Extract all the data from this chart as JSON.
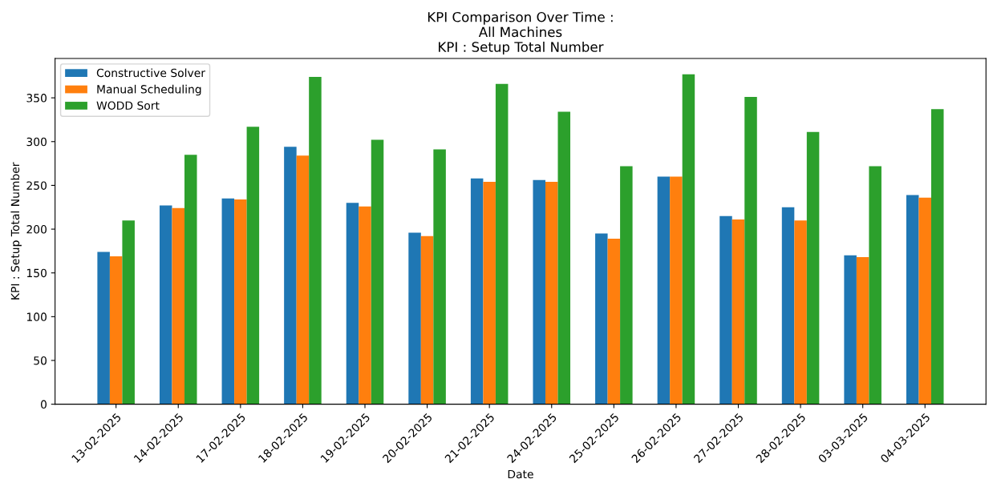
{
  "chart_data": {
    "type": "bar",
    "title": "KPI Comparison Over Time :\nAll Machines\nKPI : Setup Total Number",
    "xlabel": "Date",
    "ylabel": "KPI : Setup Total Number",
    "categories": [
      "13-02-2025",
      "14-02-2025",
      "17-02-2025",
      "18-02-2025",
      "19-02-2025",
      "20-02-2025",
      "21-02-2025",
      "24-02-2025",
      "25-02-2025",
      "26-02-2025",
      "27-02-2025",
      "28-02-2025",
      "03-03-2025",
      "04-03-2025"
    ],
    "series": [
      {
        "name": "Constructive Solver",
        "color": "#1f77b4",
        "values": [
          174,
          227,
          235,
          294,
          230,
          196,
          258,
          256,
          195,
          260,
          215,
          225,
          170,
          239
        ]
      },
      {
        "name": "Manual Scheduling",
        "color": "#ff7f0e",
        "values": [
          169,
          224,
          234,
          284,
          226,
          192,
          254,
          254,
          189,
          260,
          211,
          210,
          168,
          236
        ]
      },
      {
        "name": "WODD Sort",
        "color": "#2ca02c",
        "values": [
          210,
          285,
          317,
          374,
          302,
          291,
          366,
          334,
          272,
          377,
          351,
          311,
          272,
          337
        ]
      }
    ],
    "ylim": [
      0,
      395
    ],
    "yticks": [
      0,
      50,
      100,
      150,
      200,
      250,
      300,
      350
    ],
    "legend": "top left",
    "grid": false
  }
}
